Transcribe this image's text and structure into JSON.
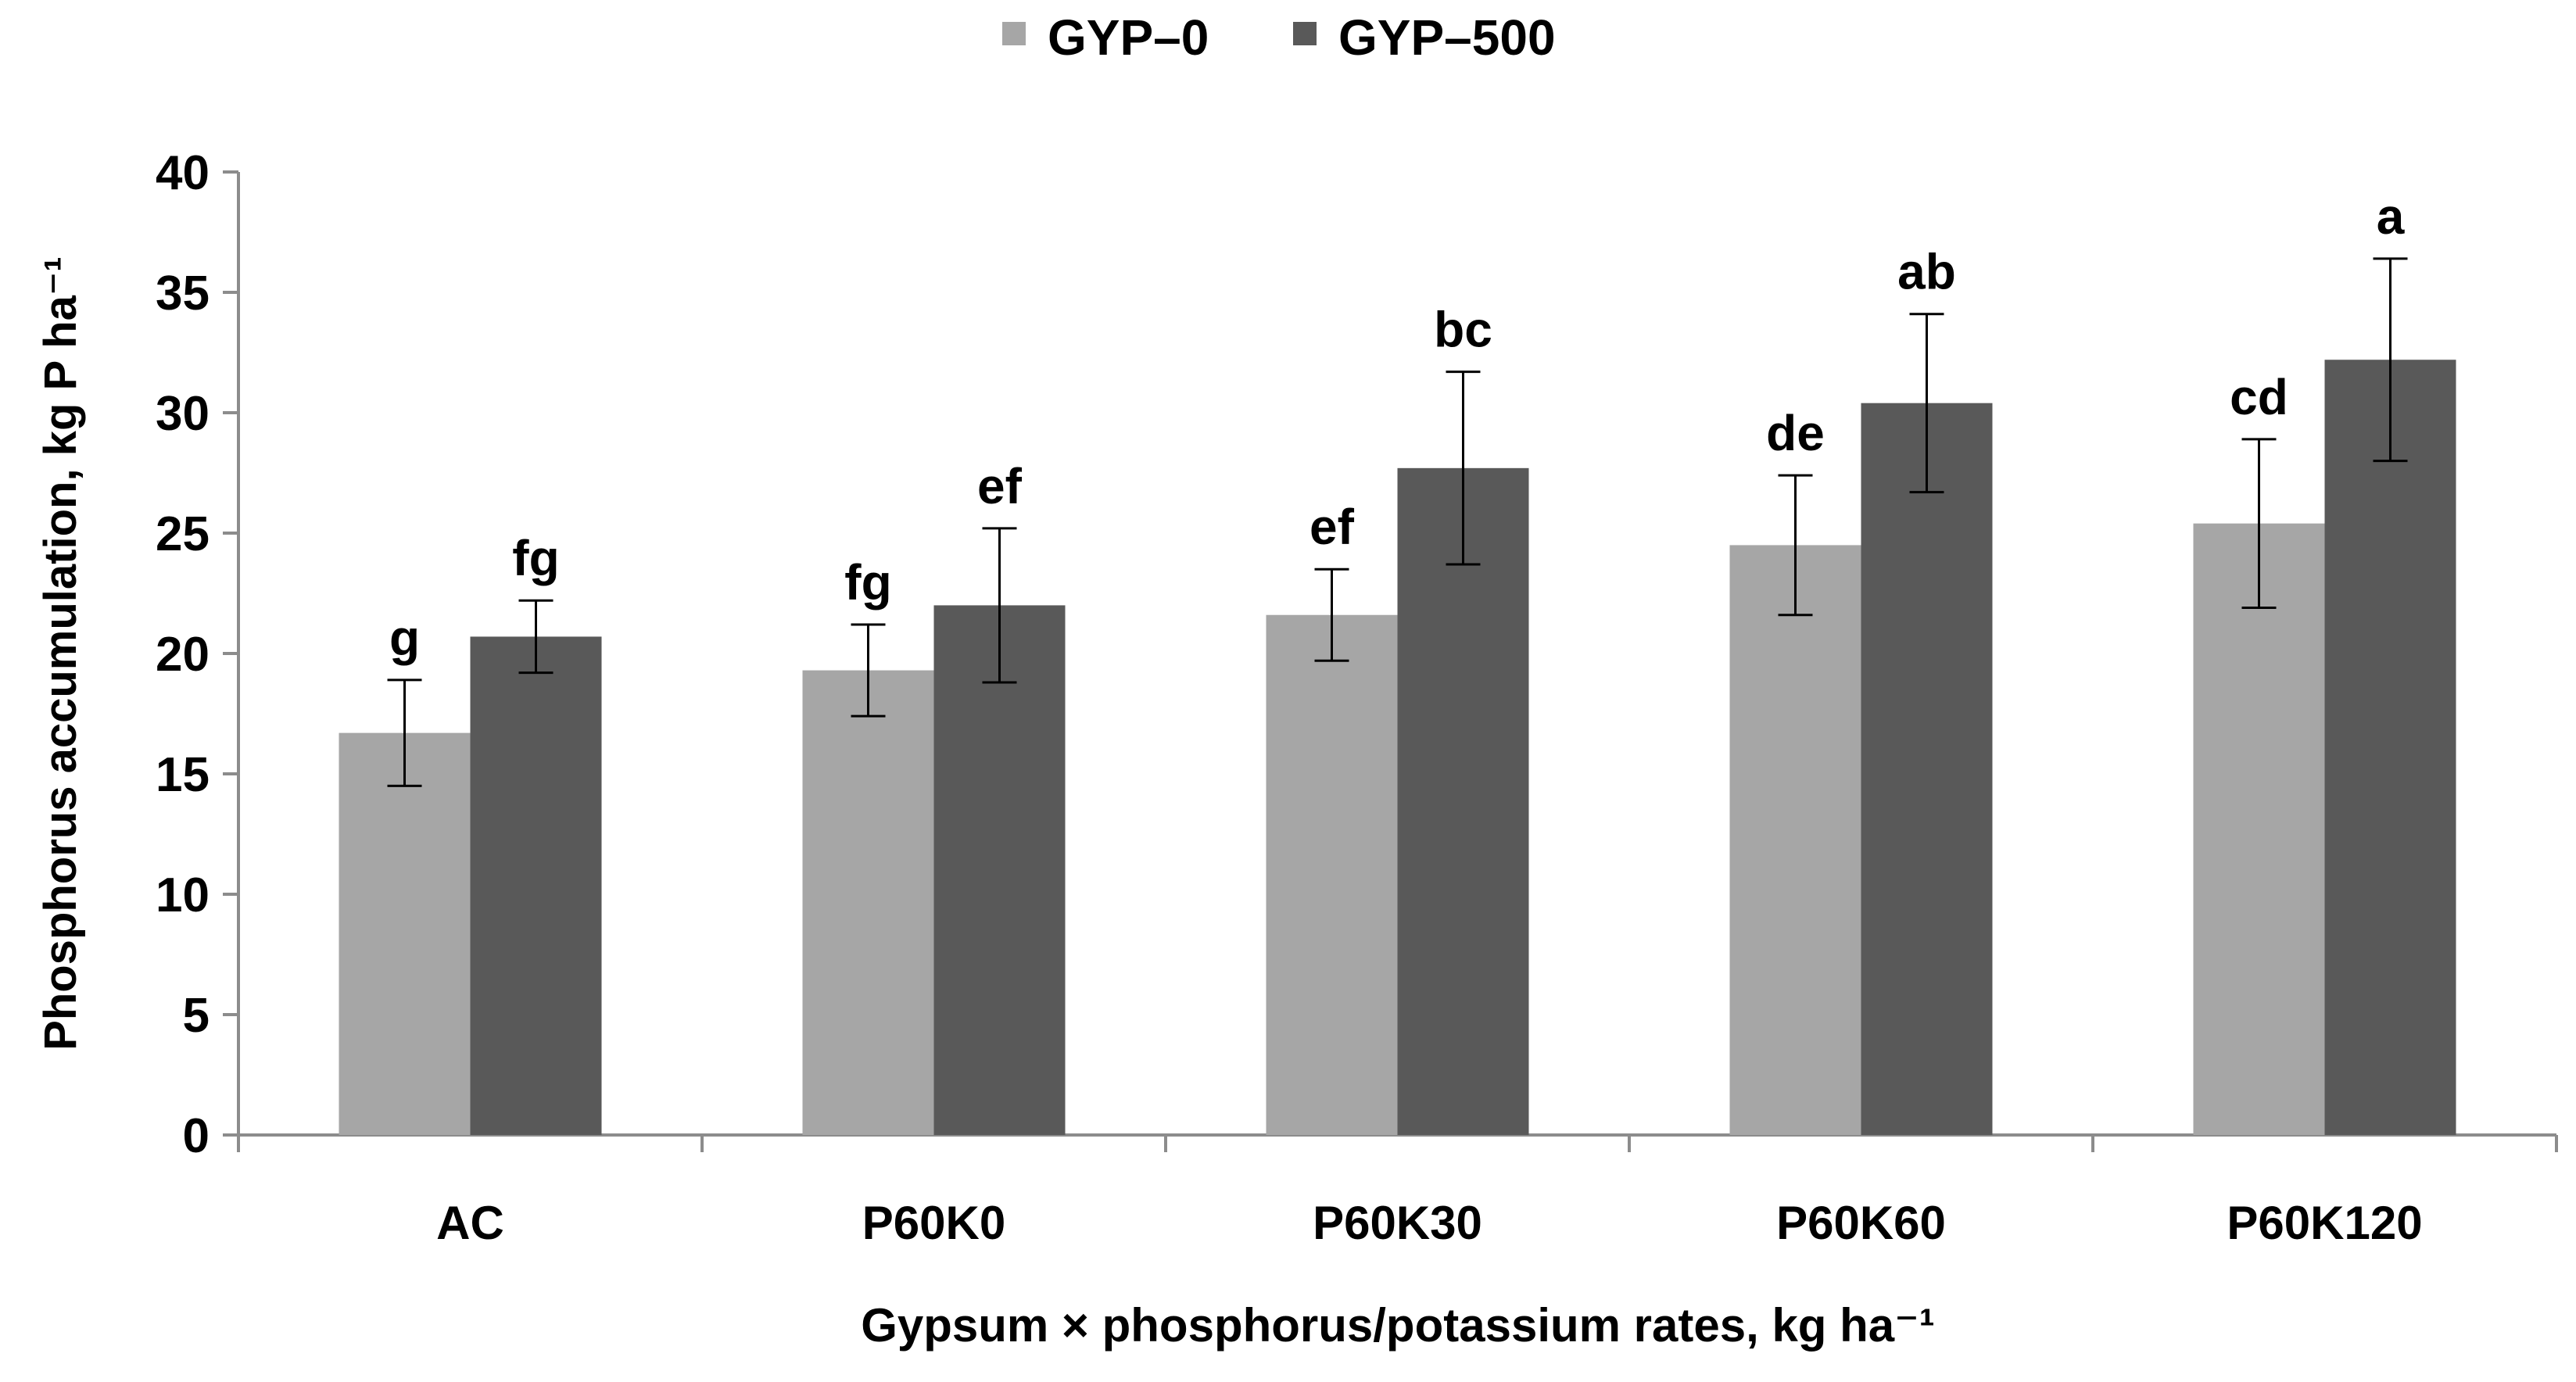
{
  "chart_data": {
    "type": "bar",
    "title": "",
    "xlabel": "Gypsum × phosphorus/potassium  rates, kg ha⁻¹",
    "ylabel": "Phosphorus accumulation, kg P ha⁻¹",
    "categories": [
      "AC",
      "P60K0",
      "P60K30",
      "P60K60",
      "P60K120"
    ],
    "ylim": [
      0,
      40
    ],
    "yticks": [
      "0",
      "5",
      "10",
      "15",
      "20",
      "25",
      "30",
      "35",
      "40"
    ],
    "grid": false,
    "legend_position": "top-center",
    "series": [
      {
        "name": "GYP–0",
        "color": "#a6a6a6",
        "values": [
          16.7,
          19.3,
          21.6,
          24.5,
          25.4
        ],
        "errors": [
          2.2,
          1.9,
          1.9,
          2.9,
          3.5
        ],
        "letters": [
          "g",
          "fg",
          "ef",
          "de",
          "cd"
        ]
      },
      {
        "name": "GYP–500",
        "color": "#595959",
        "values": [
          20.7,
          22.0,
          27.7,
          30.4,
          32.2
        ],
        "errors": [
          1.5,
          3.2,
          4.0,
          3.7,
          4.2
        ],
        "letters": [
          "fg",
          "ef",
          "bc",
          "ab",
          "a"
        ]
      }
    ]
  }
}
